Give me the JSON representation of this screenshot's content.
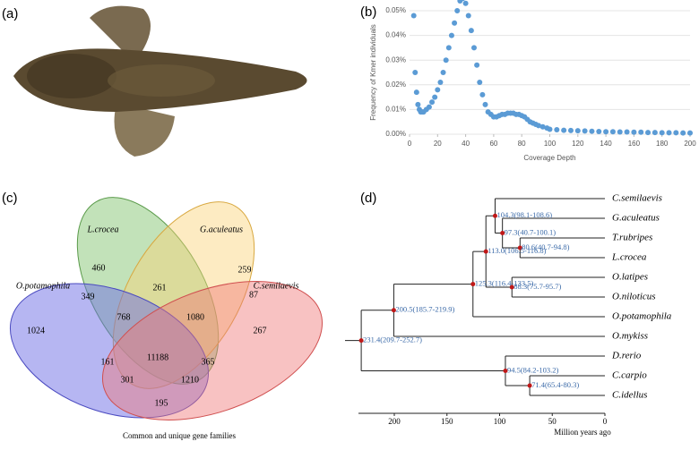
{
  "panel_labels": [
    "(a)",
    "(b)",
    "(c)",
    "(d)"
  ],
  "chart_data": {
    "type": "scatter",
    "color": "#5b9bd5",
    "y_label": "Frequency  of Kmer individuals",
    "x_label": "Coverage Depth",
    "xlim": [
      0,
      200
    ],
    "xticks": [
      0,
      20,
      40,
      60,
      80,
      100,
      120,
      140,
      160,
      180,
      200
    ],
    "ylim": [
      0,
      0.05
    ],
    "yticks": [
      {
        "value": 0,
        "label": "0.00%"
      },
      {
        "value": 0.01,
        "label": "0.01%"
      },
      {
        "value": 0.02,
        "label": "0.02%"
      },
      {
        "value": 0.03,
        "label": "0.03%"
      },
      {
        "value": 0.04,
        "label": "0.04%"
      },
      {
        "value": 0.05,
        "label": "0.05%"
      }
    ],
    "x": [
      3,
      4,
      5,
      6,
      7,
      8,
      9,
      10,
      12,
      14,
      16,
      18,
      20,
      22,
      24,
      26,
      28,
      30,
      32,
      34,
      36,
      37,
      38,
      40,
      42,
      44,
      46,
      48,
      50,
      52,
      54,
      56,
      58,
      60,
      62,
      64,
      66,
      68,
      70,
      72,
      74,
      76,
      78,
      80,
      82,
      84,
      86,
      88,
      90,
      92,
      95,
      98,
      100,
      105,
      110,
      115,
      120,
      125,
      130,
      135,
      140,
      145,
      150,
      155,
      160,
      165,
      170,
      175,
      180,
      185,
      190,
      195,
      200
    ],
    "values": [
      0.048,
      0.025,
      0.017,
      0.012,
      0.01,
      0.009,
      0.009,
      0.009,
      0.01,
      0.011,
      0.013,
      0.015,
      0.018,
      0.021,
      0.025,
      0.03,
      0.035,
      0.04,
      0.045,
      0.05,
      0.054,
      0.055,
      0.055,
      0.053,
      0.048,
      0.042,
      0.035,
      0.028,
      0.021,
      0.016,
      0.012,
      0.009,
      0.008,
      0.007,
      0.007,
      0.0075,
      0.008,
      0.008,
      0.0085,
      0.0085,
      0.0085,
      0.008,
      0.008,
      0.0075,
      0.007,
      0.006,
      0.005,
      0.0045,
      0.004,
      0.0035,
      0.003,
      0.0025,
      0.002,
      0.0018,
      0.0016,
      0.0015,
      0.0014,
      0.0013,
      0.0012,
      0.0011,
      0.001,
      0.001,
      0.0009,
      0.0009,
      0.0008,
      0.0008,
      0.0007,
      0.0007,
      0.0006,
      0.0006,
      0.0006,
      0.0005,
      0.0005
    ]
  },
  "venn": {
    "sets": [
      "L.crocea",
      "G.aculeatus",
      "O.potamophila",
      "C.semilaevis"
    ],
    "counts": [
      460,
      261,
      259,
      349,
      87,
      768,
      1080,
      1024,
      267,
      11188,
      161,
      365,
      301,
      1210,
      195
    ],
    "caption": "Common and unique gene families"
  },
  "tree": {
    "axis_ticks": [
      200,
      150,
      100,
      50,
      0
    ],
    "axis_label": "Million years ago",
    "root": {
      "label": "231.4(209.7-252.7)",
      "age": 231.4,
      "children": [
        {
          "label": "200.5(185.7-219.9)",
          "age": 200.5,
          "children": [
            {
              "label": "125.3(116.4-133.5)",
              "age": 125.3,
              "children": [
                {
                  "label": "113.0(106.5-116.8)",
                  "age": 113,
                  "children": [
                    {
                      "label": "104.3(98.1-108.6)",
                      "age": 104.3,
                      "children": [
                        {
                          "name": "C.semilaevis"
                        },
                        {
                          "label": "97.3(40.7-100.1)",
                          "age": 97.3,
                          "children": [
                            {
                              "name": "G.aculeatus"
                            },
                            {
                              "label": "80.6(40.7-94.8)",
                              "age": 80.6,
                              "children": [
                                {
                                  "name": "T.rubripes"
                                },
                                {
                                  "name": "L.crocea"
                                }
                              ]
                            }
                          ]
                        }
                      ]
                    },
                    {
                      "label": "88.3(75.7-95.7)",
                      "age": 88.3,
                      "children": [
                        {
                          "name": "O.latipes"
                        },
                        {
                          "name": "O.niloticus"
                        }
                      ]
                    }
                  ]
                },
                {
                  "name": "O.potamophila"
                }
              ]
            },
            {
              "name": "O.mykiss"
            }
          ]
        },
        {
          "label": "94.5(84.2-103.2)",
          "age": 94.5,
          "children": [
            {
              "name": "D.rerio"
            },
            {
              "label": "71.4(65.4-80.3)",
              "age": 71.4,
              "children": [
                {
                  "name": "C.carpio"
                },
                {
                  "name": "C.idellus"
                }
              ]
            }
          ]
        }
      ]
    }
  }
}
